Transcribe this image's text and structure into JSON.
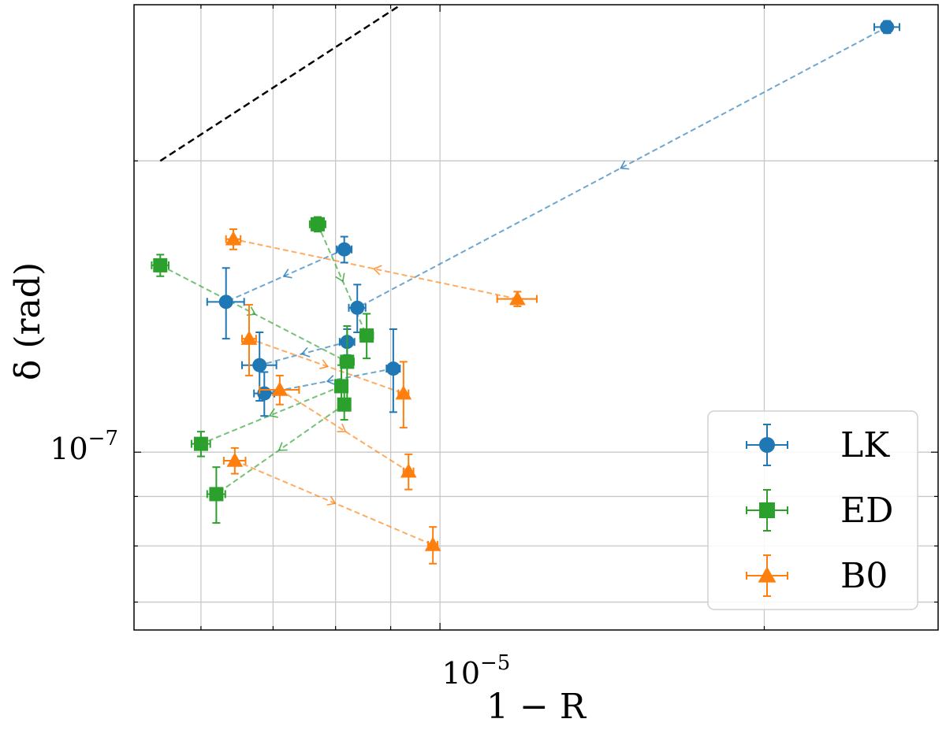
{
  "chart_data": {
    "type": "scatter",
    "xlabel": "1 − R",
    "ylabel": "δ (rad)",
    "x_scale": "log",
    "y_scale": "log",
    "xlim": [
      5.2e-06,
      2.9e-05
    ],
    "ylim": [
      6.55e-08,
      2.9e-07
    ],
    "grid": true,
    "legend_position": "lower right",
    "x_tick_label": {
      "base": "10",
      "exponent": "−5",
      "value": 1e-05
    },
    "y_tick_label": {
      "base": "10",
      "exponent": "−7",
      "value": 1e-07
    },
    "reference_line": {
      "style": "dashed",
      "color": "#000000",
      "points": [
        [
          5.5e-06,
          2e-07
        ],
        [
          9.2e-06,
          2.9e-07
        ]
      ]
    },
    "series": [
      {
        "name": "LK",
        "color": "#1f77b4",
        "marker": "circle",
        "points": [
          {
            "x": 2.6e-05,
            "y": 2.75e-07,
            "xerr": 7e-07,
            "yerr": 4e-09
          },
          {
            "x": 8.38e-06,
            "y": 1.41e-07,
            "xerr": 1.5e-07,
            "yerr": 8e-09
          },
          {
            "x": 8.15e-06,
            "y": 1.62e-07,
            "xerr": 1.3e-07,
            "yerr": 5e-09
          },
          {
            "x": 6.33e-06,
            "y": 1.43e-07,
            "xerr": 2.5e-07,
            "yerr": 1.2e-08
          },
          {
            "x": 8.2e-06,
            "y": 1.3e-07,
            "xerr": 1.3e-07,
            "yerr": 4e-09
          },
          {
            "x": 6.8e-06,
            "y": 1.23e-07,
            "xerr": 2.5e-07,
            "yerr": 1e-08
          },
          {
            "x": 9.05e-06,
            "y": 1.22e-07,
            "xerr": 1.3e-07,
            "yerr": 1.2e-08
          },
          {
            "x": 6.87e-06,
            "y": 1.15e-07,
            "xerr": 1.5e-07,
            "yerr": 6e-09
          }
        ]
      },
      {
        "name": "ED",
        "color": "#2ca02c",
        "marker": "square",
        "points": [
          {
            "x": 7.7e-06,
            "y": 1.72e-07,
            "xerr": 1.3e-07,
            "yerr": 3e-09
          },
          {
            "x": 8.55e-06,
            "y": 1.32e-07,
            "xerr": 1.2e-07,
            "yerr": 7e-09
          },
          {
            "x": 5.5e-06,
            "y": 1.56e-07,
            "xerr": 1e-07,
            "yerr": 4e-09
          },
          {
            "x": 8.2e-06,
            "y": 1.24e-07,
            "xerr": 1.2e-07,
            "yerr": 1.1e-08
          },
          {
            "x": 8.1e-06,
            "y": 1.17e-07,
            "xerr": 1e-07,
            "yerr": 6e-09
          },
          {
            "x": 6e-06,
            "y": 1.02e-07,
            "xerr": 1.2e-07,
            "yerr": 3e-09
          },
          {
            "x": 8.15e-06,
            "y": 1.12e-07,
            "xerr": 1e-07,
            "yerr": 4e-09
          },
          {
            "x": 6.2e-06,
            "y": 9.05e-08,
            "xerr": 1.2e-07,
            "yerr": 6e-09
          }
        ]
      },
      {
        "name": "B0",
        "color": "#ff7f0e",
        "marker": "triangle",
        "points": [
          {
            "x": 1.18e-05,
            "y": 1.44e-07,
            "xerr": 5e-07,
            "yerr": 2.5e-09
          },
          {
            "x": 6.43e-06,
            "y": 1.66e-07,
            "xerr": 1e-07,
            "yerr": 4e-09
          },
          {
            "x": 6.65e-06,
            "y": 1.31e-07,
            "xerr": 1e-07,
            "yerr": 1.1e-08
          },
          {
            "x": 9.25e-06,
            "y": 1.15e-07,
            "xerr": 1e-07,
            "yerr": 9e-09
          },
          {
            "x": 7.1e-06,
            "y": 1.16e-07,
            "xerr": 3e-07,
            "yerr": 4e-09
          },
          {
            "x": 9.35e-06,
            "y": 9.55e-08,
            "xerr": 1e-07,
            "yerr": 4e-09
          },
          {
            "x": 6.45e-06,
            "y": 9.8e-08,
            "xerr": 1.5e-07,
            "yerr": 3e-09
          },
          {
            "x": 9.85e-06,
            "y": 8.02e-08,
            "xerr": 1e-07,
            "yerr": 3.5e-09
          }
        ]
      }
    ],
    "paths": [
      {
        "series": "LK",
        "from": 0,
        "to": 1
      },
      {
        "series": "LK",
        "from": 2,
        "to": 3
      },
      {
        "series": "LK",
        "from": 4,
        "to": 5
      },
      {
        "series": "LK",
        "from": 6,
        "to": 7
      },
      {
        "series": "ED",
        "from": 0,
        "to": 1
      },
      {
        "series": "ED",
        "from": 2,
        "to": 3
      },
      {
        "series": "ED",
        "from": 4,
        "to": 5
      },
      {
        "series": "ED",
        "from": 6,
        "to": 7
      },
      {
        "series": "B0",
        "from": 0,
        "to": 1
      },
      {
        "series": "B0",
        "from": 2,
        "to": 3
      },
      {
        "series": "B0",
        "from": 4,
        "to": 5
      },
      {
        "series": "B0",
        "from": 6,
        "to": 7
      }
    ]
  }
}
